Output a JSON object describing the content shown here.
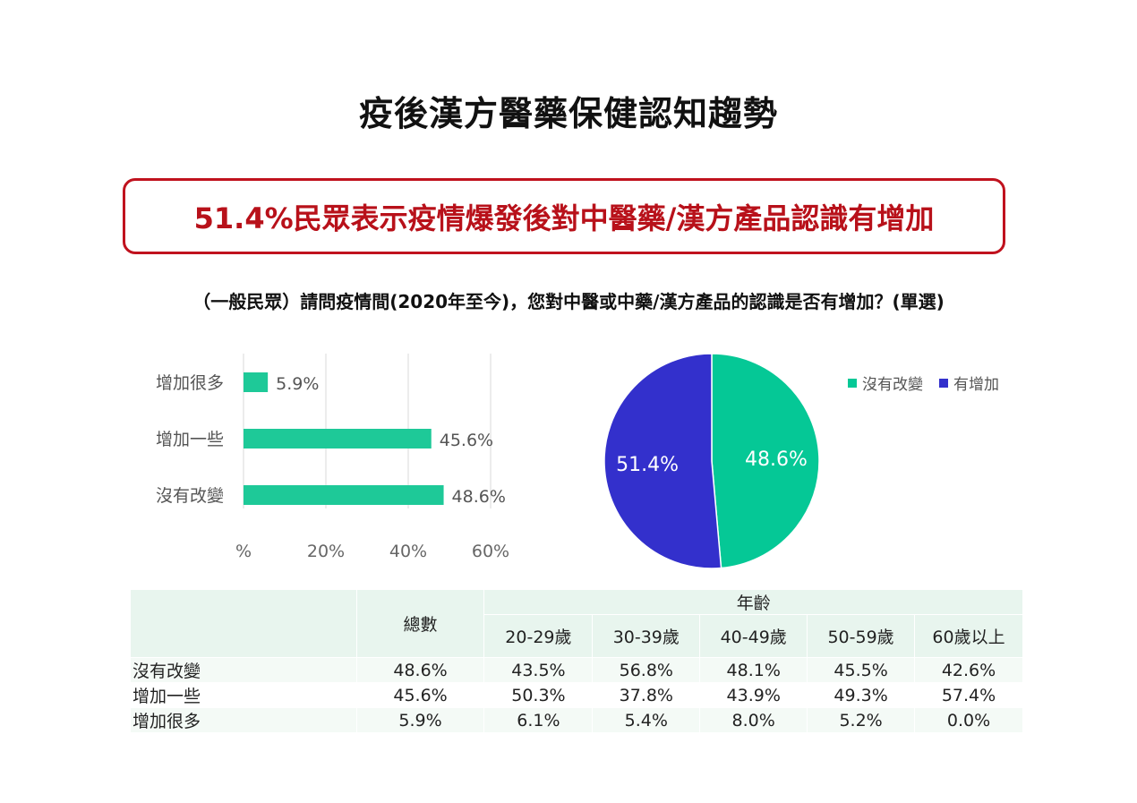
{
  "title": "疫後漢方醫藥保健認知趨勢",
  "headline": "51.4%民眾表示疫情爆發後對中醫藥/漢方產品認識有增加",
  "question": "（一般民眾）請問疫情間(2020年至今)，您對中醫或中藥/漢方產品的認識是否有增加？(單選)",
  "colors": {
    "accent_red": "#b8111a",
    "bar_green": "#1ec998",
    "pie_green": "#05c896",
    "pie_blue": "#3330cc"
  },
  "chart_data": [
    {
      "type": "bar",
      "orientation": "horizontal",
      "categories": [
        "增加很多",
        "增加一些",
        "沒有改變"
      ],
      "values": [
        5.9,
        45.6,
        48.6
      ],
      "value_labels": [
        "5.9%",
        "45.6%",
        "48.6%"
      ],
      "xlim": [
        0,
        60
      ],
      "x_ticks": [
        0,
        20,
        40,
        60
      ],
      "x_tick_labels": [
        "%",
        "20%",
        "40%",
        "60%"
      ],
      "grid": true
    },
    {
      "type": "pie",
      "slices": [
        {
          "name": "沒有改變",
          "value": 48.6,
          "label": "48.6%",
          "color": "#05c896"
        },
        {
          "name": "有增加",
          "value": 51.4,
          "label": "51.4%",
          "color": "#3330cc"
        }
      ],
      "legend": [
        "沒有改變",
        "有增加"
      ],
      "legend_position": "top-right"
    },
    {
      "type": "table",
      "header_group": "年齡",
      "total_header": "總數",
      "columns": [
        "20-29歲",
        "30-39歲",
        "40-49歲",
        "50-59歲",
        "60歲以上"
      ],
      "rows": [
        {
          "label": "沒有改變",
          "total": "48.6%",
          "values": [
            "43.5%",
            "56.8%",
            "48.1%",
            "45.5%",
            "42.6%"
          ]
        },
        {
          "label": "增加一些",
          "total": "45.6%",
          "values": [
            "50.3%",
            "37.8%",
            "43.9%",
            "49.3%",
            "57.4%"
          ]
        },
        {
          "label": "增加很多",
          "total": "5.9%",
          "values": [
            "6.1%",
            "5.4%",
            "8.0%",
            "5.2%",
            "0.0%"
          ]
        }
      ]
    }
  ]
}
